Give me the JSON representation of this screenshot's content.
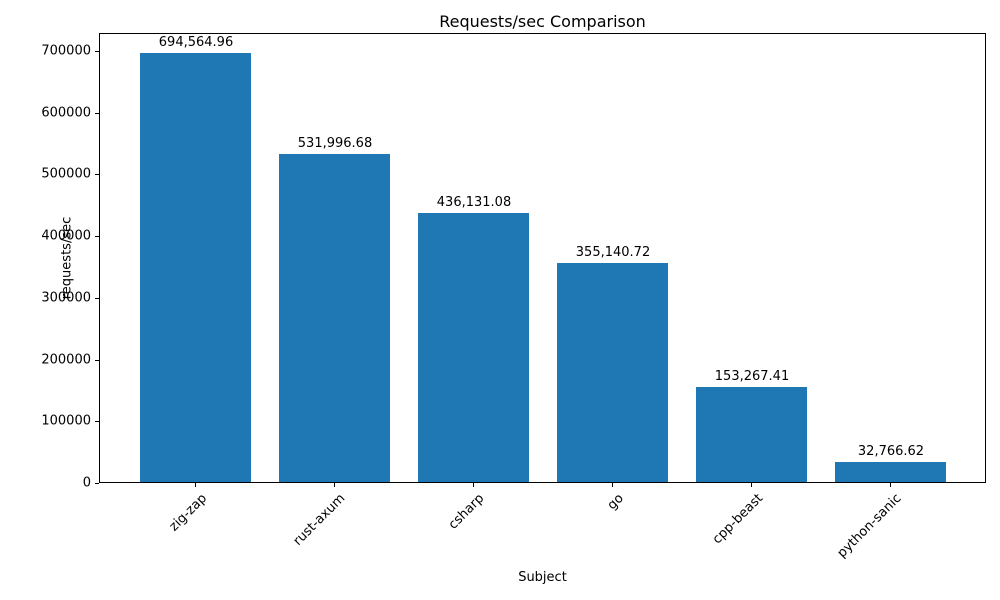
{
  "figure": {
    "background_color": "#ffffff",
    "axis_color": "#000000",
    "text_color": "#000000"
  },
  "chart_data": {
    "type": "bar",
    "title": "Requests/sec Comparison",
    "xlabel": "Subject",
    "ylabel": "requests/sec",
    "categories": [
      "zig-zap",
      "rust-axum",
      "csharp",
      "go",
      "cpp-beast",
      "python-sanic"
    ],
    "values": [
      694564.96,
      531996.68,
      436131.08,
      355140.72,
      153267.41,
      32766.62
    ],
    "bar_value_labels": [
      "694,564.96",
      "531,996.68",
      "436,131.08",
      "355,140.72",
      "153,267.41",
      "32,766.62"
    ],
    "yticks": [
      0,
      100000,
      200000,
      300000,
      400000,
      500000,
      600000,
      700000
    ],
    "ytick_labels": [
      "0",
      "100000",
      "200000",
      "300000",
      "400000",
      "500000",
      "600000",
      "700000"
    ],
    "ylim": [
      0,
      729300
    ],
    "bar_color": "#1f77b4",
    "grid": false,
    "legend_position": "none",
    "x_tick_label_rotation_deg": 45
  }
}
